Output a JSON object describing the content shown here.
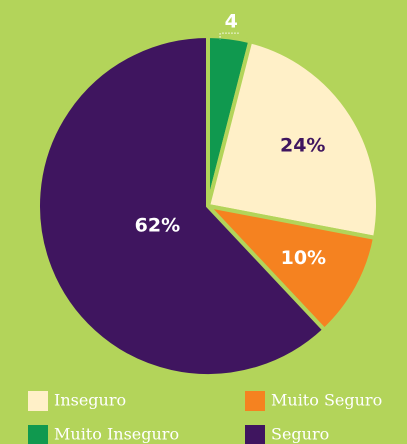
{
  "chart_data": {
    "type": "pie",
    "categories": [
      "Muito Inseguro",
      "Inseguro",
      "Muito Seguro",
      "Seguro"
    ],
    "values": [
      4,
      24,
      10,
      62
    ],
    "value_labels": [
      "4",
      "24%",
      "10%",
      "62%"
    ],
    "colors": [
      "#10994f",
      "#fff0c8",
      "#f58220",
      "#3f155f"
    ]
  }
}
